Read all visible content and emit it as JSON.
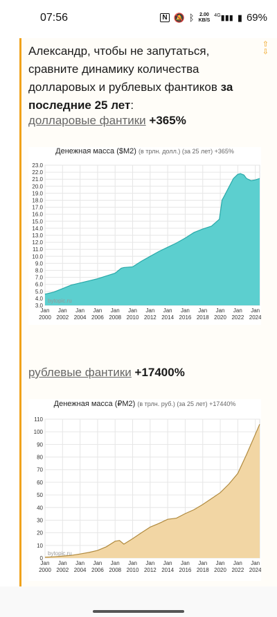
{
  "status_bar": {
    "time": "07:56",
    "nfc": "N",
    "speed_value": "2.00",
    "speed_unit": "KB/S",
    "network": "4G",
    "battery": "69%"
  },
  "post": {
    "intro_text": "Александр, чтобы не запутаться, сравните динамику количества долларовых и рублевых фантиков ",
    "intro_bold": "за последние 25 лет",
    "intro_end": ":",
    "usd_link": "долларовые фантики",
    "usd_pct": "+365%",
    "rub_link": "рублевые фантики",
    "rub_pct": "+17400%"
  },
  "chart_data": [
    {
      "type": "area",
      "title": "Денежная масса ($M2)",
      "subtitle": "(в трлн. долл.) (за 25 лет) +365%",
      "watermark": "bytopic.ru",
      "color": "#5ccfcf",
      "line_color": "#2aa9a9",
      "ylim": [
        3.0,
        23.0
      ],
      "yticks": [
        "23.0",
        "22.0",
        "21.0",
        "20.0",
        "19.0",
        "18.0",
        "17.0",
        "16.0",
        "15.0",
        "14.0",
        "13.0",
        "12.0",
        "11.0",
        "10.0",
        "9.0",
        "8.0",
        "7.0",
        "6.0",
        "5.0",
        "4.0",
        "3.0"
      ],
      "xlim": [
        2000,
        2024.5
      ],
      "xticks": [
        {
          "month": "Jan",
          "year": "2000",
          "t": 2000
        },
        {
          "month": "Jan",
          "year": "2002",
          "t": 2002
        },
        {
          "month": "Jan",
          "year": "2004",
          "t": 2004
        },
        {
          "month": "Jan",
          "year": "2006",
          "t": 2006
        },
        {
          "month": "Jan",
          "year": "2008",
          "t": 2008
        },
        {
          "month": "Jan",
          "year": "2010",
          "t": 2010
        },
        {
          "month": "Jan",
          "year": "2012",
          "t": 2012
        },
        {
          "month": "Jan",
          "year": "2014",
          "t": 2014
        },
        {
          "month": "Jan",
          "year": "2016",
          "t": 2016
        },
        {
          "month": "Jan",
          "year": "2018",
          "t": 2018
        },
        {
          "month": "Jan",
          "year": "2020",
          "t": 2020
        },
        {
          "month": "Jan",
          "year": "2022",
          "t": 2022
        },
        {
          "month": "Jan",
          "year": "2024",
          "t": 2024
        }
      ],
      "x": [
        2000,
        2001,
        2002,
        2003,
        2004,
        2005,
        2006,
        2007,
        2008,
        2008.7,
        2009,
        2010,
        2011,
        2012,
        2013,
        2014,
        2015,
        2016,
        2017,
        2018,
        2019,
        2019.9,
        2020.2,
        2020.5,
        2021,
        2021.5,
        2022,
        2022.3,
        2022.7,
        2023,
        2023.5,
        2024,
        2024.5
      ],
      "values": [
        4.6,
        4.9,
        5.4,
        5.9,
        6.2,
        6.5,
        6.8,
        7.2,
        7.6,
        8.3,
        8.4,
        8.5,
        9.3,
        10.0,
        10.7,
        11.3,
        11.9,
        12.6,
        13.4,
        13.9,
        14.3,
        15.3,
        18.0,
        18.7,
        19.9,
        21.1,
        21.7,
        21.8,
        21.6,
        21.1,
        20.8,
        20.9,
        21.1
      ]
    },
    {
      "type": "area",
      "title": "Денежная масса (₽M2)",
      "subtitle": "(в трлн. руб.) (за 25 лет) +17440%",
      "watermark": "bytopic.ru",
      "color": "#f2d6a4",
      "line_color": "#b08a3e",
      "ylim": [
        0,
        110
      ],
      "yticks": [
        "110",
        "100",
        "90",
        "80",
        "70",
        "60",
        "50",
        "40",
        "30",
        "20",
        "10",
        "0"
      ],
      "xlim": [
        2000,
        2024.5
      ],
      "xticks": [
        {
          "month": "Jan",
          "year": "2000",
          "t": 2000
        },
        {
          "month": "Jan",
          "year": "2002",
          "t": 2002
        },
        {
          "month": "Jan",
          "year": "2004",
          "t": 2004
        },
        {
          "month": "Jan",
          "year": "2006",
          "t": 2006
        },
        {
          "month": "Jan",
          "year": "2008",
          "t": 2008
        },
        {
          "month": "Jan",
          "year": "2010",
          "t": 2010
        },
        {
          "month": "Jan",
          "year": "2012",
          "t": 2012
        },
        {
          "month": "Jan",
          "year": "2014",
          "t": 2014
        },
        {
          "month": "Jan",
          "year": "2016",
          "t": 2016
        },
        {
          "month": "Jan",
          "year": "2018",
          "t": 2018
        },
        {
          "month": "Jan",
          "year": "2020",
          "t": 2020
        },
        {
          "month": "Jan",
          "year": "2022",
          "t": 2022
        },
        {
          "month": "Jan",
          "year": "2024",
          "t": 2024
        }
      ],
      "x": [
        2000,
        2001,
        2002,
        2003,
        2004,
        2005,
        2006,
        2007,
        2008,
        2008.5,
        2009,
        2010,
        2011,
        2012,
        2013,
        2014,
        2015,
        2016,
        2017,
        2018,
        2019,
        2020,
        2021,
        2022,
        2023,
        2024,
        2024.5
      ],
      "values": [
        0.6,
        1.0,
        1.5,
        2.1,
        3.2,
        4.4,
        6.0,
        8.9,
        13.3,
        13.9,
        11.0,
        15.3,
        20.0,
        24.5,
        27.4,
        30.7,
        31.6,
        35.2,
        38.3,
        42.4,
        47.1,
        51.8,
        58.7,
        67.0,
        82.0,
        98.0,
        106.0
      ]
    }
  ]
}
